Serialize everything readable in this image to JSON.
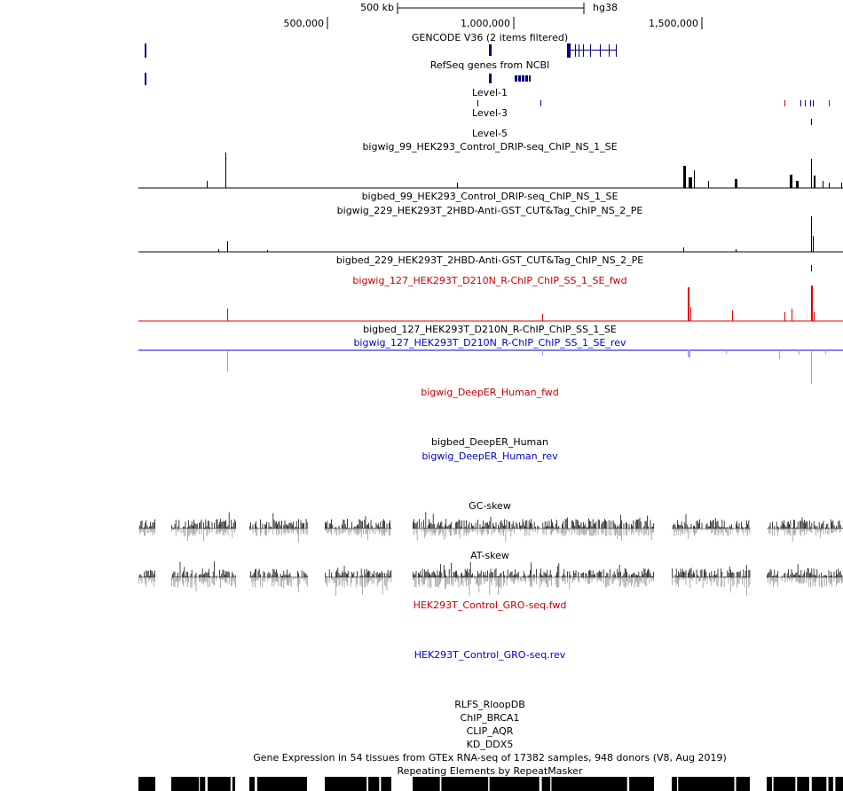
{
  "ruler": {
    "scale_label": "500 kb",
    "assembly": "hg38",
    "positions": [
      "500,000",
      "1,000,000",
      "1,500,000"
    ]
  },
  "tracks": {
    "gencode": "GENCODE V36 (2 items filtered)",
    "refseq": "RefSeq genes from NCBI",
    "level1": "Level-1",
    "level3": "Level-3",
    "level5": "Level-5",
    "bigwig_99": "bigwig_99_HEK293_Control_DRIP-seq_ChIP_NS_1_SE",
    "bigbed_99": "bigbed_99_HEK293_Control_DRIP-seq_ChIP_NS_1_SE",
    "bigwig_229": "bigwig_229_HEK293T_2HBD-Anti-GST_CUT&Tag_ChIP_NS_2_PE",
    "bigbed_229": "bigbed_229_HEK293T_2HBD-Anti-GST_CUT&Tag_ChIP_NS_2_PE",
    "bigwig_127_fwd": "bigwig_127_HEK293T_D210N_R-ChIP_ChIP_SS_1_SE_fwd",
    "bigbed_127": "bigbed_127_HEK293T_D210N_R-ChIP_ChIP_SS_1_SE",
    "bigwig_127_rev": "bigwig_127_HEK293T_D210N_R-ChIP_ChIP_SS_1_SE_rev",
    "deeper_fwd": "bigwig_DeepER_Human_fwd",
    "deeper_bed": "bigbed_DeepER_Human",
    "deeper_rev": "bigwig_DeepER_Human_rev",
    "gc_skew": "GC-skew",
    "at_skew": "AT-skew",
    "gro_fwd": "HEK293T_Control_GRO-seq.fwd",
    "gro_rev": "HEK293T_Control_GRO-seq.rev",
    "rlfs": "RLFS_RloopDB",
    "brca1": "ChIP_BRCA1",
    "aqr": "CLIP_AQR",
    "ddx5": "KD_DDX5",
    "gtex": "Gene Expression in 54 tissues from GTEx RNA-seq of 17382 samples, 948 donors (V8, Aug 2019)",
    "repeatmasker": "Repeating Elements by RepeatMasker"
  }
}
